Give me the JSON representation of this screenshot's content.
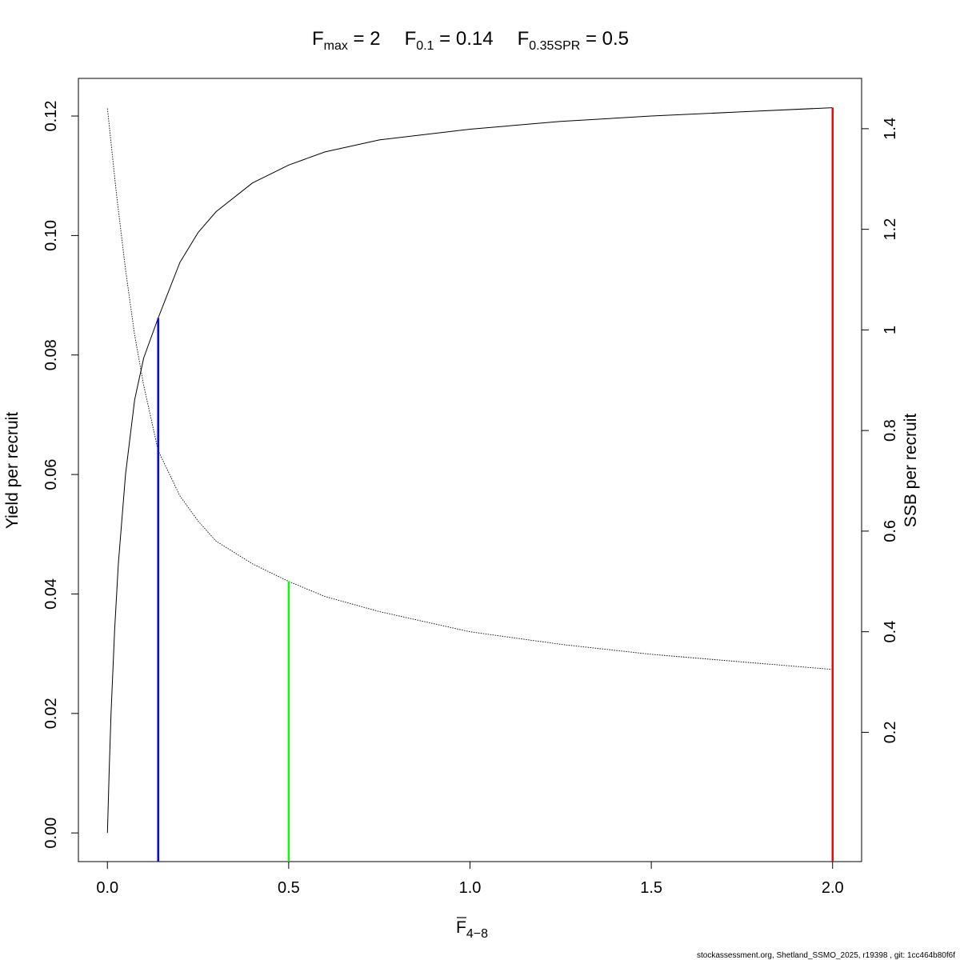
{
  "chart_data": {
    "type": "line",
    "title": {
      "fmax": {
        "sym": "F",
        "sub": "max",
        "eq": " = 2"
      },
      "f01": {
        "sym": "F",
        "sub": "0.1",
        "eq": " = 0.14"
      },
      "fspr": {
        "sym": "F",
        "sub": "0.35SPR",
        "eq": " = 0.5"
      }
    },
    "xlabel": {
      "sym": "F",
      "sub": "4−8"
    },
    "ylabel_left": "Yield per recruit",
    "ylabel_right": "SSB per recruit",
    "xlim": [
      -0.08,
      2.08
    ],
    "ylim_left": [
      -0.0048,
      0.1263
    ],
    "ylim_right": [
      -0.057,
      1.5
    ],
    "x_ticks": [
      "0.0",
      "0.5",
      "1.0",
      "1.5",
      "2.0"
    ],
    "x_tick_values": [
      0,
      0.5,
      1,
      1.5,
      2
    ],
    "y_left_ticks": [
      "0.00",
      "0.02",
      "0.04",
      "0.06",
      "0.08",
      "0.10",
      "0.12"
    ],
    "y_left_tick_values": [
      0,
      0.02,
      0.04,
      0.06,
      0.08,
      0.1,
      0.12
    ],
    "y_right_ticks": [
      "0.2",
      "0.4",
      "0.6",
      "0.8",
      "1",
      "1.2",
      "1.4"
    ],
    "y_right_tick_values": [
      0.2,
      0.4,
      0.6,
      0.8,
      1.0,
      1.2,
      1.4
    ],
    "series": [
      {
        "name": "",
        "axis": "left",
        "style": "solid",
        "color": "#000000",
        "x": [
          0,
          0.005,
          0.01,
          0.02,
          0.03,
          0.05,
          0.075,
          0.1,
          0.14,
          0.2,
          0.25,
          0.3,
          0.4,
          0.5,
          0.6,
          0.75,
          1.0,
          1.25,
          1.5,
          1.75,
          2.0
        ],
        "y": [
          0,
          0.0105,
          0.02,
          0.034,
          0.045,
          0.06,
          0.0725,
          0.0795,
          0.0862,
          0.0955,
          0.1005,
          0.104,
          0.1088,
          0.1118,
          0.114,
          0.116,
          0.1178,
          0.1191,
          0.12,
          0.1207,
          0.1214
        ]
      },
      {
        "name": "",
        "axis": "right",
        "style": "dotted",
        "color": "#000000",
        "x": [
          0,
          0.025,
          0.05,
          0.075,
          0.1,
          0.14,
          0.2,
          0.25,
          0.3,
          0.4,
          0.5,
          0.6,
          0.75,
          1.0,
          1.25,
          1.5,
          1.75,
          2.0
        ],
        "y": [
          1.44,
          1.27,
          1.12,
          0.99,
          0.89,
          0.76,
          0.67,
          0.62,
          0.58,
          0.535,
          0.5,
          0.47,
          0.44,
          0.4,
          0.375,
          0.355,
          0.34,
          0.325
        ]
      }
    ],
    "reference_lines": [
      {
        "label": "F0.1",
        "x": 0.14,
        "y_top": 0.0862,
        "axis": "left",
        "color": "#0000ff"
      },
      {
        "label": "F0.35SPR",
        "x": 0.5,
        "y_top": 0.5,
        "axis": "right",
        "color": "#00ff00"
      },
      {
        "label": "Fmax",
        "x": 2.0,
        "y_top": 0.1214,
        "axis": "left",
        "color": "#ff0000"
      }
    ]
  },
  "footer": "stockassessment.org, Shetland_SSMO_2025, r19398 , git: 1cc464b80f6f"
}
